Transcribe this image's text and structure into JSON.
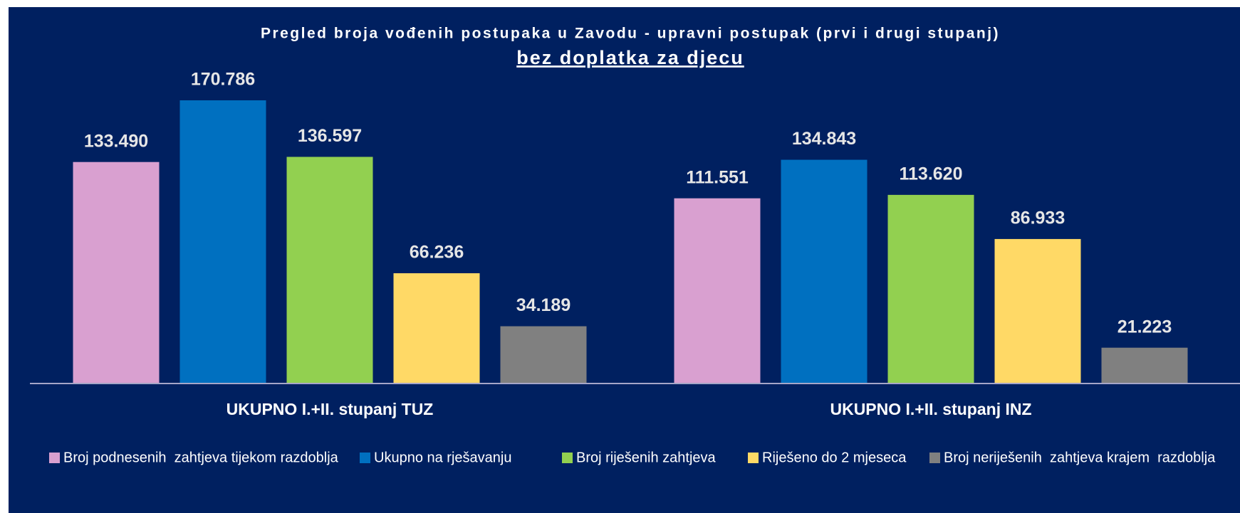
{
  "chart_data": {
    "type": "bar",
    "title": "Pregled broja vođenih postupaka u Zavodu - upravni postupak (prvi i drugi stupanj)",
    "subtitle": "bez doplatka za djecu",
    "categories": [
      "UKUPNO I.+II. stupanj TUZ",
      "UKUPNO I.+II. stupanj INZ"
    ],
    "series": [
      {
        "name": "Broj podnesenih  zahtjeva tijekom razdoblja",
        "color": "#d9a0d0",
        "values": [
          133490,
          111551
        ],
        "value_labels": [
          "133.490",
          "111.551"
        ]
      },
      {
        "name": "Ukupno na rješavanju",
        "color": "#0070c0",
        "values": [
          170786,
          134843
        ],
        "value_labels": [
          "170.786",
          "134.843"
        ]
      },
      {
        "name": "Broj riješenih zahtjeva",
        "color": "#92d050",
        "values": [
          136597,
          113620
        ],
        "value_labels": [
          "136.597",
          "113.620"
        ]
      },
      {
        "name": "Riješeno do 2 mjeseca",
        "color": "#ffd966",
        "values": [
          66236,
          86933
        ],
        "value_labels": [
          "66.236",
          "86.933"
        ]
      },
      {
        "name": "Broj neriješenih  zahtjeva krajem  razdoblja",
        "color": "#808080",
        "values": [
          34189,
          21223
        ],
        "value_labels": [
          "34.189",
          "21.223"
        ]
      }
    ],
    "legend": "bottom"
  }
}
